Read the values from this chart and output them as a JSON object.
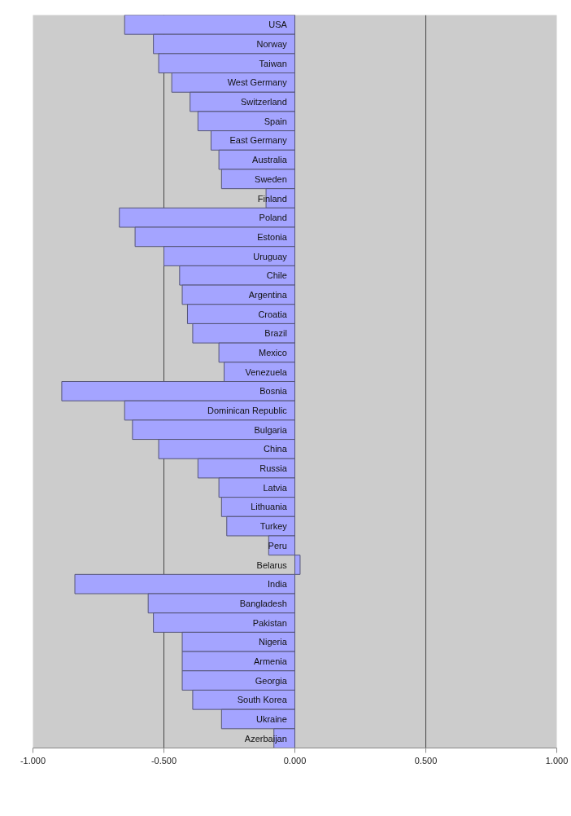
{
  "chart_data": {
    "type": "bar",
    "orientation": "horizontal",
    "categories": [
      "USA",
      "Norway",
      "Taiwan",
      "West Germany",
      "Switzerland",
      "Spain",
      "East Germany",
      "Australia",
      "Sweden",
      "Finland",
      "Poland",
      "Estonia",
      "Uruguay",
      "Chile",
      "Argentina",
      "Croatia",
      "Brazil",
      "Mexico",
      "Venezuela",
      "Bosnia",
      "Dominican Republic",
      "Bulgaria",
      "China",
      "Russia",
      "Latvia",
      "Lithuania",
      "Turkey",
      "Peru",
      "Belarus",
      "India",
      "Bangladesh",
      "Pakistan",
      "Nigeria",
      "Armenia",
      "Georgia",
      "South Korea",
      "Ukraine",
      "Azerbaijan"
    ],
    "values": [
      -0.65,
      -0.54,
      -0.52,
      -0.47,
      -0.4,
      -0.37,
      -0.32,
      -0.29,
      -0.28,
      -0.11,
      -0.67,
      -0.61,
      -0.5,
      -0.44,
      -0.43,
      -0.41,
      -0.39,
      -0.29,
      -0.27,
      -0.89,
      -0.65,
      -0.62,
      -0.52,
      -0.37,
      -0.29,
      -0.28,
      -0.26,
      -0.1,
      0.02,
      -0.84,
      -0.56,
      -0.54,
      -0.43,
      -0.43,
      -0.43,
      -0.39,
      -0.28,
      -0.08
    ],
    "color": "#a4a4ff",
    "xlim": [
      -1,
      1
    ],
    "xticks": [
      {
        "value": -1,
        "label": "-1.000"
      },
      {
        "value": -0.5,
        "label": "-0.500"
      },
      {
        "value": 0,
        "label": "0.000"
      },
      {
        "value": 0.5,
        "label": "0.500"
      },
      {
        "value": 1,
        "label": "1.000"
      }
    ],
    "grid": "x",
    "tick_labels": "x"
  }
}
